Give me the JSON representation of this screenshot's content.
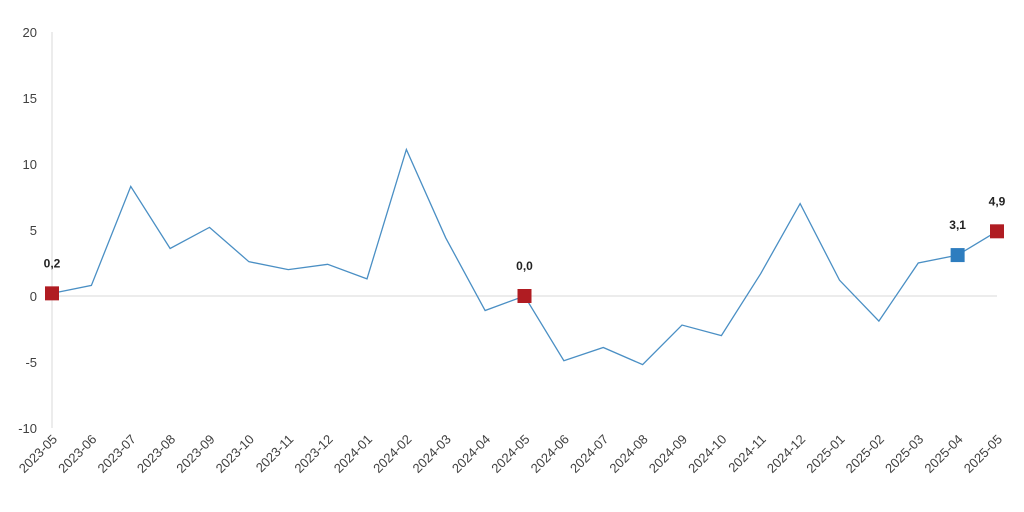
{
  "chart_data": {
    "type": "line",
    "categories": [
      "2023-05",
      "2023-06",
      "2023-07",
      "2023-08",
      "2023-09",
      "2023-10",
      "2023-11",
      "2023-12",
      "2024-01",
      "2024-02",
      "2024-03",
      "2024-04",
      "2024-05",
      "2024-06",
      "2024-07",
      "2024-08",
      "2024-09",
      "2024-10",
      "2024-11",
      "2024-12",
      "2025-01",
      "2025-02",
      "2025-03",
      "2025-04",
      "2025-05"
    ],
    "series": [
      {
        "color": "#4a8fc4",
        "values": [
          0.2,
          0.8,
          8.3,
          3.6,
          5.2,
          2.6,
          2.0,
          2.4,
          1.3,
          11.1,
          4.4,
          -1.1,
          0.0,
          -4.9,
          -3.9,
          -5.2,
          -2.2,
          -3.0,
          1.7,
          7.0,
          1.2,
          -1.9,
          2.5,
          3.1,
          4.9
        ],
        "value_labels": [
          "0,2",
          null,
          null,
          null,
          null,
          null,
          null,
          null,
          null,
          null,
          null,
          null,
          "0,0",
          null,
          null,
          null,
          null,
          null,
          null,
          null,
          null,
          null,
          null,
          "3,1",
          "4,9"
        ],
        "marker_colors": [
          "#b01c22",
          null,
          null,
          null,
          null,
          null,
          null,
          null,
          null,
          null,
          null,
          null,
          "#b01c22",
          null,
          null,
          null,
          null,
          null,
          null,
          null,
          null,
          null,
          null,
          "#2e7dbf",
          "#b01c22"
        ]
      }
    ],
    "ylim": [
      -10,
      20
    ],
    "yticks": [
      -10,
      -5,
      0,
      5,
      10,
      15,
      20
    ],
    "grid": false
  }
}
